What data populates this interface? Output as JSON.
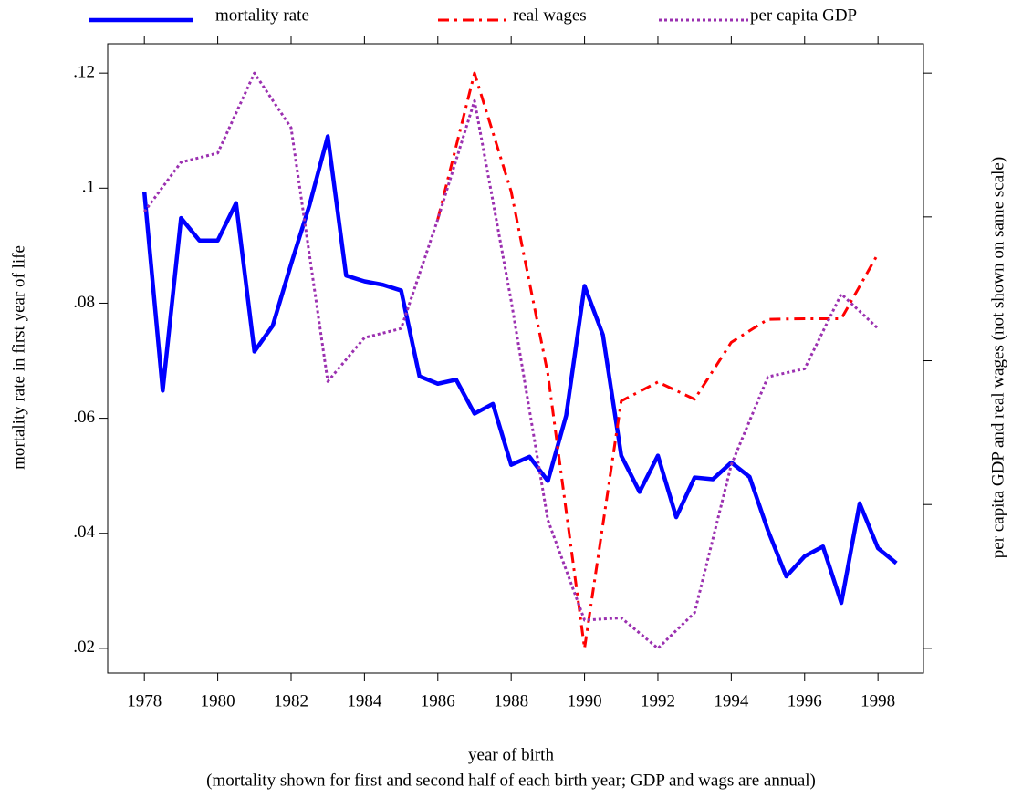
{
  "chart_data": {
    "type": "line",
    "xlabel": "year of birth",
    "note": "(mortality shown for first and second half of each birth year; GDP and wags are annual)",
    "ylabel": "mortality rate in first year of life",
    "y2label": "per capita GDP and real wages (not shown on same scale)",
    "xlim": [
      1977.0,
      1999.24
    ],
    "xticks": [
      1978,
      1980,
      1982,
      1984,
      1986,
      1988,
      1990,
      1992,
      1994,
      1996,
      1998
    ],
    "ylim": [
      0.0157,
      0.1251
    ],
    "yticks": [
      {
        "value": 0.02,
        "label": ".02"
      },
      {
        "value": 0.04,
        "label": ".04"
      },
      {
        "value": 0.06,
        "label": ".06"
      },
      {
        "value": 0.08,
        "label": ".08"
      },
      {
        "value": 0.1,
        "label": ".1"
      },
      {
        "value": 0.12,
        "label": ".12"
      }
    ],
    "y2lim": [
      0.0157,
      0.1251
    ],
    "y2ticks": [
      0.02,
      0.045,
      0.07,
      0.095,
      0.12
    ],
    "series": [
      {
        "name": "mortality rate",
        "color": "#0000ff",
        "style": "solid",
        "x": [
          1978,
          1978.5,
          1979,
          1979.5,
          1980,
          1980.5,
          1981,
          1981.5,
          1982,
          1982.5,
          1983,
          1983.5,
          1984,
          1984.5,
          1985,
          1985.5,
          1986,
          1986.5,
          1987,
          1987.5,
          1988,
          1988.5,
          1989,
          1989.5,
          1990,
          1990.5,
          1991,
          1991.5,
          1992,
          1992.5,
          1993,
          1993.5,
          1994,
          1994.5,
          1995,
          1995.5,
          1996,
          1996.5,
          1997,
          1997.5,
          1998,
          1998.5
        ],
        "values": [
          0.0993,
          0.0648,
          0.0948,
          0.0909,
          0.0909,
          0.0974,
          0.0716,
          0.0761,
          0.0868,
          0.097,
          0.109,
          0.0848,
          0.0838,
          0.0832,
          0.0822,
          0.0673,
          0.066,
          0.0667,
          0.0608,
          0.0625,
          0.0519,
          0.0533,
          0.0491,
          0.0605,
          0.083,
          0.0745,
          0.0535,
          0.0472,
          0.0535,
          0.0428,
          0.0497,
          0.0494,
          0.0523,
          0.0498,
          0.0405,
          0.0325,
          0.036,
          0.0377,
          0.0279,
          0.0452,
          0.0374,
          0.0348
        ]
      },
      {
        "name": "real wages",
        "color": "#ff0000",
        "style": "dashdot",
        "axis": "y2",
        "x": [
          1986,
          1987,
          1988,
          1989,
          1990,
          1991,
          1992,
          1993,
          1994,
          1995,
          1996,
          1997,
          1998
        ],
        "values": [
          0.0946,
          0.12,
          0.0994,
          0.0677,
          0.02,
          0.063,
          0.0663,
          0.0633,
          0.0732,
          0.0772,
          0.0773,
          0.0773,
          0.0886
        ]
      },
      {
        "name": "per capita GDP",
        "color": "#9b30b0",
        "style": "dotted",
        "axis": "y2",
        "x": [
          1978,
          1979,
          1980,
          1981,
          1982,
          1983,
          1984,
          1985,
          1986,
          1987,
          1988,
          1989,
          1990,
          1991,
          1992,
          1993,
          1994,
          1995,
          1996,
          1997,
          1998
        ],
        "values": [
          0.0959,
          0.1045,
          0.1061,
          0.12,
          0.1105,
          0.0664,
          0.074,
          0.0756,
          0.0946,
          0.1152,
          0.0804,
          0.0423,
          0.0249,
          0.0253,
          0.02,
          0.0262,
          0.0519,
          0.0672,
          0.0686,
          0.0816,
          0.0756
        ]
      }
    ]
  }
}
